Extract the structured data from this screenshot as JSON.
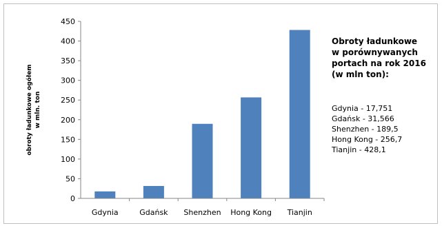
{
  "chart_data": {
    "type": "bar",
    "categories": [
      "Gdynia",
      "Gdańsk",
      "Shenzhen",
      "Hong Kong",
      "Tianjin"
    ],
    "values": [
      17.751,
      31.566,
      189.5,
      256.7,
      428.1
    ],
    "ylabel_lines": [
      "obroty ładunkowe ogółem",
      "w mln. ton"
    ],
    "ylim": [
      0,
      450
    ],
    "yticks": [
      "0",
      "50",
      "100",
      "150",
      "200",
      "250",
      "300",
      "350",
      "400",
      "450"
    ],
    "bar_color": "#4f81bd",
    "grid": false,
    "legend_position": "right"
  },
  "annotation": {
    "title_lines": [
      "Obroty ładunkowe",
      "w porównywanych",
      "portach na rok 2016",
      "(w mln ton):"
    ],
    "lines": [
      "Gdynia - 17,751",
      "Gdańsk - 31,566",
      "Shenzhen - 189,5",
      "Hong Kong - 256,7",
      "Tianjin - 428,1"
    ]
  }
}
